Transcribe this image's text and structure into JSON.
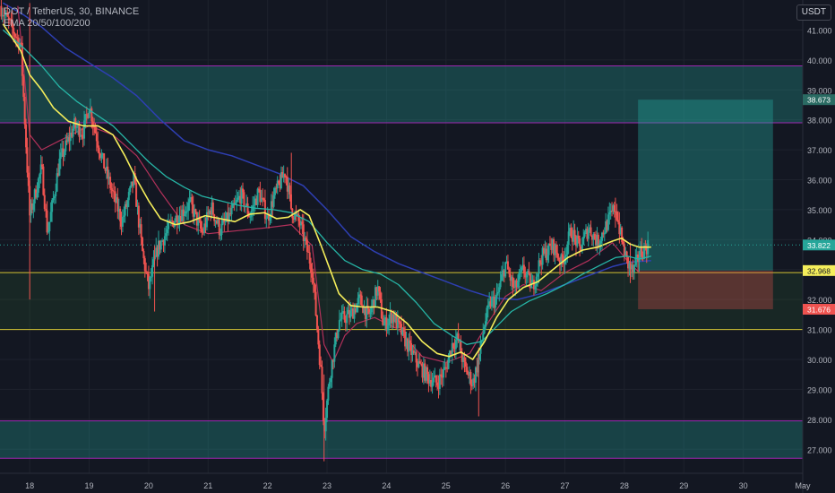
{
  "header": {
    "symbol_line": "DOT / TetherUS, 30, BINANCE",
    "indicator_line": "EMA 20/50/100/200"
  },
  "currency_button": "USDT",
  "colors": {
    "background": "#131722",
    "grid": "#1e222d",
    "up_candle": "#26a69a",
    "down_candle": "#ef5350",
    "ema20": "#f5ee5b",
    "ema50": "#26b5a6",
    "ema100": "#b2315a",
    "ema200": "#2e3fb3",
    "zone_line": "#9c27b0",
    "support_line": "#d4c534",
    "target_zone": "#2a6b63",
    "stop_zone": "#5b3236"
  },
  "price_axis": {
    "ticks": [
      "41.000",
      "40.000",
      "39.000",
      "38.000",
      "37.000",
      "36.000",
      "35.000",
      "34.000",
      "33.000",
      "32.000",
      "31.000",
      "30.000",
      "29.000",
      "28.000",
      "27.000"
    ],
    "labels": [
      {
        "text": "38.673",
        "value": 38.673,
        "color": "#2a6b63"
      },
      {
        "text": "33.822",
        "value": 33.822,
        "color": "#26a69a"
      },
      {
        "text": "32.968",
        "value": 32.968,
        "color": "#f5ee5b"
      },
      {
        "text": "31.676",
        "value": 31.676,
        "color": "#ef5350"
      }
    ]
  },
  "time_axis": {
    "ticks": [
      "18",
      "19",
      "20",
      "21",
      "22",
      "23",
      "24",
      "25",
      "26",
      "27",
      "28",
      "29",
      "30",
      "May"
    ]
  },
  "zones": [
    {
      "name": "resistance-zone",
      "top": 39.8,
      "bottom": 37.9
    },
    {
      "name": "support-zone",
      "top": 32.9,
      "bottom": 31.0
    },
    {
      "name": "lower-zone",
      "top": 27.95,
      "bottom": 26.7
    }
  ],
  "position_tool": {
    "entry": 32.968,
    "target": 38.673,
    "stop": 31.676,
    "start_day": 28.23,
    "end_day": 30.5
  },
  "chart_data": {
    "type": "candlestick",
    "x_unit": "day of month",
    "xlim": [
      17.5,
      31
    ],
    "ylim": [
      26.2,
      42.0
    ],
    "price_path": [
      [
        17.5,
        41.8
      ],
      [
        17.85,
        40.5
      ],
      [
        18.0,
        34.8
      ],
      [
        18.2,
        36.4
      ],
      [
        18.3,
        34.2
      ],
      [
        18.5,
        36.6
      ],
      [
        18.75,
        37.8
      ],
      [
        18.9,
        37.6
      ],
      [
        19.0,
        38.5
      ],
      [
        19.2,
        36.8
      ],
      [
        19.4,
        35.5
      ],
      [
        19.55,
        34.6
      ],
      [
        19.75,
        36.0
      ],
      [
        19.9,
        33.5
      ],
      [
        20.0,
        32.4
      ],
      [
        20.15,
        33.7
      ],
      [
        20.4,
        34.6
      ],
      [
        20.7,
        35.2
      ],
      [
        20.9,
        34.2
      ],
      [
        21.05,
        35.1
      ],
      [
        21.2,
        34.3
      ],
      [
        21.4,
        34.9
      ],
      [
        21.55,
        35.5
      ],
      [
        21.7,
        34.8
      ],
      [
        21.85,
        35.6
      ],
      [
        22.0,
        34.7
      ],
      [
        22.1,
        35.4
      ],
      [
        22.3,
        36.3
      ],
      [
        22.4,
        35.0
      ],
      [
        22.55,
        34.5
      ],
      [
        22.75,
        33.0
      ],
      [
        22.9,
        29.5
      ],
      [
        22.95,
        27.7
      ],
      [
        23.05,
        29.5
      ],
      [
        23.2,
        31.3
      ],
      [
        23.4,
        31.5
      ],
      [
        23.55,
        32.0
      ],
      [
        23.7,
        31.4
      ],
      [
        23.85,
        32.4
      ],
      [
        23.95,
        31.1
      ],
      [
        24.1,
        31.5
      ],
      [
        24.25,
        30.9
      ],
      [
        24.4,
        30.3
      ],
      [
        24.55,
        29.8
      ],
      [
        24.7,
        29.4
      ],
      [
        24.85,
        29.2
      ],
      [
        25.0,
        29.7
      ],
      [
        25.1,
        30.5
      ],
      [
        25.2,
        30.7
      ],
      [
        25.3,
        29.8
      ],
      [
        25.45,
        29.2
      ],
      [
        25.55,
        30.0
      ],
      [
        25.65,
        31.2
      ],
      [
        25.75,
        31.9
      ],
      [
        25.85,
        32.0
      ],
      [
        26.0,
        33.2
      ],
      [
        26.15,
        32.3
      ],
      [
        26.3,
        33.0
      ],
      [
        26.45,
        32.4
      ],
      [
        26.6,
        33.4
      ],
      [
        26.8,
        33.8
      ],
      [
        26.95,
        33.2
      ],
      [
        27.1,
        34.3
      ],
      [
        27.25,
        33.7
      ],
      [
        27.4,
        34.4
      ],
      [
        27.55,
        33.9
      ],
      [
        27.7,
        34.5
      ],
      [
        27.85,
        35.1
      ],
      [
        27.95,
        34.0
      ],
      [
        28.05,
        33.2
      ],
      [
        28.15,
        32.9
      ],
      [
        28.25,
        33.5
      ],
      [
        28.4,
        33.822
      ]
    ],
    "ema20": [
      [
        17.55,
        41.2
      ],
      [
        17.85,
        40.3
      ],
      [
        18.0,
        39.5
      ],
      [
        18.2,
        39.0
      ],
      [
        18.4,
        38.4
      ],
      [
        18.65,
        37.95
      ],
      [
        18.9,
        37.8
      ],
      [
        19.15,
        37.8
      ],
      [
        19.4,
        37.5
      ],
      [
        19.6,
        36.8
      ],
      [
        19.8,
        36.0
      ],
      [
        20.0,
        35.3
      ],
      [
        20.2,
        34.7
      ],
      [
        20.45,
        34.5
      ],
      [
        20.7,
        34.6
      ],
      [
        20.95,
        34.8
      ],
      [
        21.2,
        34.7
      ],
      [
        21.45,
        34.6
      ],
      [
        21.7,
        34.85
      ],
      [
        21.95,
        34.9
      ],
      [
        22.15,
        34.7
      ],
      [
        22.35,
        34.75
      ],
      [
        22.55,
        35.0
      ],
      [
        22.7,
        34.8
      ],
      [
        22.9,
        33.8
      ],
      [
        23.05,
        33.0
      ],
      [
        23.2,
        32.2
      ],
      [
        23.4,
        31.8
      ],
      [
        23.6,
        31.75
      ],
      [
        23.85,
        31.75
      ],
      [
        24.1,
        31.6
      ],
      [
        24.35,
        31.2
      ],
      [
        24.6,
        30.6
      ],
      [
        24.85,
        30.2
      ],
      [
        25.05,
        30.1
      ],
      [
        25.25,
        30.25
      ],
      [
        25.45,
        30.0
      ],
      [
        25.65,
        30.6
      ],
      [
        25.85,
        31.4
      ],
      [
        26.05,
        32.0
      ],
      [
        26.3,
        32.4
      ],
      [
        26.55,
        32.6
      ],
      [
        26.8,
        33.0
      ],
      [
        27.05,
        33.4
      ],
      [
        27.3,
        33.65
      ],
      [
        27.55,
        33.75
      ],
      [
        27.8,
        33.95
      ],
      [
        27.95,
        34.05
      ],
      [
        28.1,
        33.85
      ],
      [
        28.25,
        33.75
      ],
      [
        28.45,
        33.75
      ]
    ],
    "ema50": [
      [
        17.55,
        41.0
      ],
      [
        17.9,
        40.4
      ],
      [
        18.2,
        39.8
      ],
      [
        18.5,
        39.1
      ],
      [
        18.8,
        38.6
      ],
      [
        19.1,
        38.2
      ],
      [
        19.4,
        37.8
      ],
      [
        19.7,
        37.2
      ],
      [
        20.0,
        36.6
      ],
      [
        20.3,
        36.1
      ],
      [
        20.6,
        35.75
      ],
      [
        20.9,
        35.45
      ],
      [
        21.2,
        35.3
      ],
      [
        21.5,
        35.15
      ],
      [
        21.8,
        35.05
      ],
      [
        22.1,
        35.0
      ],
      [
        22.4,
        34.9
      ],
      [
        22.7,
        34.6
      ],
      [
        23.0,
        33.9
      ],
      [
        23.3,
        33.3
      ],
      [
        23.6,
        33.0
      ],
      [
        23.9,
        32.85
      ],
      [
        24.2,
        32.5
      ],
      [
        24.5,
        31.9
      ],
      [
        24.8,
        31.2
      ],
      [
        25.1,
        30.8
      ],
      [
        25.35,
        30.5
      ],
      [
        25.6,
        30.6
      ],
      [
        25.85,
        31.1
      ],
      [
        26.1,
        31.6
      ],
      [
        26.4,
        31.95
      ],
      [
        26.7,
        32.2
      ],
      [
        27.0,
        32.5
      ],
      [
        27.3,
        32.85
      ],
      [
        27.6,
        33.15
      ],
      [
        27.85,
        33.4
      ],
      [
        28.05,
        33.45
      ],
      [
        28.25,
        33.35
      ],
      [
        28.45,
        33.45
      ]
    ],
    "ema100": [
      [
        17.8,
        41.8
      ],
      [
        18.0,
        37.5
      ],
      [
        18.2,
        37.0
      ],
      [
        18.6,
        37.4
      ],
      [
        19.0,
        37.8
      ],
      [
        19.4,
        37.5
      ],
      [
        19.8,
        36.8
      ],
      [
        20.2,
        35.6
      ],
      [
        20.6,
        34.5
      ],
      [
        21.0,
        34.2
      ],
      [
        21.5,
        34.3
      ],
      [
        22.0,
        34.4
      ],
      [
        22.4,
        34.5
      ],
      [
        22.75,
        33.8
      ],
      [
        22.95,
        30.5
      ],
      [
        23.1,
        29.9
      ],
      [
        23.3,
        30.8
      ],
      [
        23.5,
        31.2
      ],
      [
        23.8,
        31.4
      ],
      [
        24.2,
        31.0
      ],
      [
        24.6,
        30.1
      ],
      [
        25.0,
        29.9
      ],
      [
        25.4,
        30.2
      ],
      [
        25.7,
        31.2
      ],
      [
        26.0,
        32.1
      ],
      [
        26.3,
        32.5
      ],
      [
        26.6,
        32.3
      ],
      [
        27.0,
        32.9
      ],
      [
        27.4,
        33.3
      ],
      [
        27.8,
        33.9
      ],
      [
        28.05,
        33.3
      ],
      [
        28.25,
        32.9
      ]
    ],
    "ema200": [
      [
        17.55,
        41.9
      ],
      [
        17.9,
        41.5
      ],
      [
        18.2,
        41.1
      ],
      [
        18.6,
        40.4
      ],
      [
        19.0,
        39.9
      ],
      [
        19.4,
        39.4
      ],
      [
        19.8,
        38.8
      ],
      [
        20.2,
        38.0
      ],
      [
        20.6,
        37.3
      ],
      [
        21.0,
        37.0
      ],
      [
        21.4,
        36.8
      ],
      [
        21.8,
        36.5
      ],
      [
        22.2,
        36.2
      ],
      [
        22.6,
        35.8
      ],
      [
        23.0,
        35.0
      ],
      [
        23.4,
        34.1
      ],
      [
        23.8,
        33.6
      ],
      [
        24.2,
        33.2
      ],
      [
        24.6,
        32.9
      ],
      [
        25.0,
        32.6
      ],
      [
        25.4,
        32.3
      ],
      [
        25.8,
        32.05
      ],
      [
        26.2,
        32.0
      ],
      [
        26.6,
        32.2
      ],
      [
        27.0,
        32.5
      ],
      [
        27.4,
        32.8
      ],
      [
        27.8,
        33.1
      ],
      [
        28.1,
        33.25
      ],
      [
        28.45,
        33.3
      ]
    ]
  }
}
